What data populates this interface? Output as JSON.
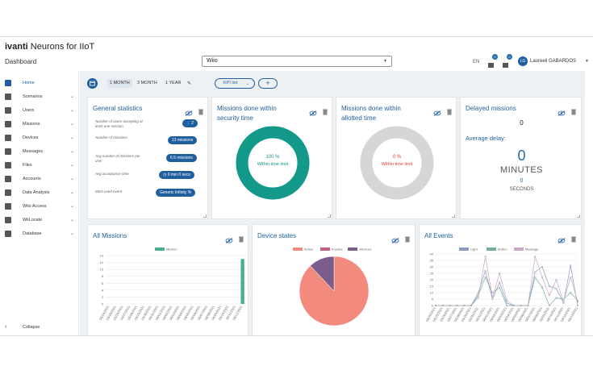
{
  "app": {
    "brand_prefix": "ivanti",
    "brand_suffix": " Neurons for IIoT",
    "page_title": "Dashboard",
    "site_select": "Wiio",
    "lang": "EN",
    "notif_count_1": "0",
    "notif_count_2": "0",
    "user_initials": "LG",
    "user_name": "Laureeil  GABARDOS"
  },
  "sidebar": {
    "items": [
      {
        "label": "Home",
        "icon": "home-icon"
      },
      {
        "label": "Scenarios",
        "icon": "scenario-icon"
      },
      {
        "label": "Users",
        "icon": "users-icon"
      },
      {
        "label": "Missions",
        "icon": "missions-icon"
      },
      {
        "label": "Devices",
        "icon": "devices-icon"
      },
      {
        "label": "Messages",
        "icon": "messages-icon"
      },
      {
        "label": "Files",
        "icon": "files-icon"
      },
      {
        "label": "Accounts",
        "icon": "accounts-icon"
      },
      {
        "label": "Data Analysis",
        "icon": "search-icon"
      },
      {
        "label": "Wiio Access",
        "icon": "access-icon"
      },
      {
        "label": "WiiLocate",
        "icon": "map-icon"
      },
      {
        "label": "Database",
        "icon": "database-icon"
      }
    ],
    "collapse_label": "Collapse"
  },
  "toolbar": {
    "periods": [
      "1 MONTH",
      "3 MONTH",
      "1 YEAR"
    ],
    "kpi_label": "KPI list",
    "add_label": "+"
  },
  "cards": {
    "general": {
      "title": "General statistics",
      "rows": [
        {
          "label": "Number of users accepting at least one mission",
          "value": "2"
        },
        {
          "label": "Number of missions",
          "value": "13    missions"
        },
        {
          "label": "Avg number of missions per user",
          "value": "6.5    missions"
        },
        {
          "label": "Avg acceptance time",
          "value": "0 min 0 secs"
        },
        {
          "label": "Most used event",
          "value": "Generic    Infinity %"
        }
      ]
    },
    "security": {
      "title": "Missions done within security time",
      "pct": "100 %",
      "sub": "Within time limit",
      "color": "#12998a"
    },
    "allotted": {
      "title": "Missions done within allotted time",
      "pct": "0 %",
      "sub": "Within time limit",
      "color": "#e53935"
    },
    "delayed": {
      "title": "Delayed missions",
      "count": "0",
      "avg_label": "Average delay:",
      "minutes": "0",
      "minutes_unit": "MINUTES",
      "seconds": "0",
      "seconds_unit": "SECONDS"
    },
    "all_missions": {
      "title": "All Missions"
    },
    "device_states": {
      "title": "Device states"
    },
    "all_events": {
      "title": "All Events"
    }
  },
  "chart_data": [
    {
      "type": "bar",
      "legend": [
        "Mission"
      ],
      "series": [
        {
          "name": "Mission",
          "color": "#4caf8a",
          "values": [
            0,
            0,
            0,
            0,
            0,
            0,
            0,
            0,
            0,
            0,
            0,
            0,
            0,
            0,
            0,
            0,
            0,
            0,
            0,
            13
          ]
        }
      ],
      "categories": [
        "05/24/2021",
        "05/25/2021",
        "05/26/2021",
        "05/27/2021",
        "05/28/2021",
        "05/29/2021",
        "05/30/2021",
        "05/31/2021",
        "06/01/2021",
        "06/02/2021",
        "06/03/2021",
        "06/04/2021",
        "06/05/2021",
        "06/06/2021",
        "06/07/2021",
        "06/08/2021",
        "06/09/2021",
        "06/10/2021",
        "06/11/2021",
        "06/12/2021"
      ],
      "yticks": [
        0,
        2,
        4,
        6,
        8,
        10,
        12,
        14
      ],
      "ylim": [
        0,
        14
      ]
    },
    {
      "type": "pie",
      "legend": [
        "Active",
        "Inactive",
        "Silenced"
      ],
      "colors": [
        "#f28b7d",
        "#c4607e",
        "#7b5c8a"
      ],
      "values": [
        88,
        0,
        12
      ]
    },
    {
      "type": "line",
      "legend": [
        "Light",
        "Button",
        "Message"
      ],
      "colors": [
        "#8a9bbf",
        "#6fb09c",
        "#c9a8c9"
      ],
      "yticks": [
        0,
        5,
        10,
        15,
        20,
        25,
        30,
        35,
        40
      ],
      "ylim": [
        0,
        40
      ],
      "categories": [
        "05/24/2021",
        "05/25/2021",
        "05/26/2021",
        "05/27/2021",
        "05/28/2021",
        "05/29/2021",
        "05/30/2021",
        "05/31/2021",
        "06/01/2021",
        "06/02/2021",
        "06/03/2021",
        "06/04/2021",
        "06/05/2021",
        "06/06/2021",
        "06/07/2021",
        "06/08/2021",
        "06/09/2021",
        "06/10/2021",
        "06/11/2021",
        "06/12/2021",
        "06/13/2021"
      ],
      "series": [
        {
          "name": "Light",
          "values": [
            0,
            0,
            0,
            0,
            0,
            0,
            10,
            27,
            5,
            18,
            2,
            0,
            0,
            0,
            26,
            30,
            15,
            13,
            2,
            31,
            0
          ]
        },
        {
          "name": "Button",
          "values": [
            0,
            0,
            0,
            0,
            0,
            0,
            8,
            22,
            10,
            14,
            0,
            0,
            0,
            0,
            22,
            14,
            0,
            6,
            5,
            10,
            4
          ]
        },
        {
          "name": "Message",
          "values": [
            0,
            0,
            0,
            0,
            0,
            0,
            6,
            38,
            6,
            25,
            4,
            0,
            0,
            0,
            38,
            22,
            8,
            20,
            3,
            22,
            3
          ]
        }
      ]
    }
  ]
}
